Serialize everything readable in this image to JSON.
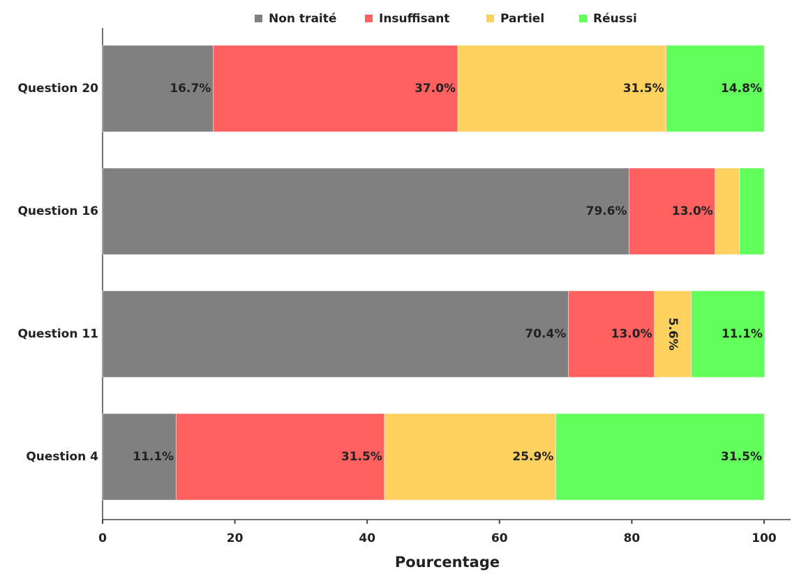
{
  "chart_data": {
    "type": "stacked-barh",
    "xlabel": "Pourcentage",
    "categories": [
      "Question 20",
      "Question 16",
      "Question 11",
      "Question 4"
    ],
    "series": [
      {
        "name": "Non traité",
        "color": "#808080",
        "label_color": "#ffffff",
        "values": [
          16.7,
          79.6,
          70.4,
          11.1
        ],
        "value_labels": [
          "16.7%",
          "79.6%",
          "70.4%",
          "11.1%"
        ]
      },
      {
        "name": "Insuffisant",
        "color": "#ff6161",
        "label_color": "#ffffff",
        "values": [
          37.0,
          13.0,
          13.0,
          31.5
        ],
        "value_labels": [
          "37.0%",
          "13.0%",
          "13.0%",
          "31.5%"
        ]
      },
      {
        "name": "Partiel",
        "color": "#ffd260",
        "label_color": "#777777",
        "values": [
          31.5,
          3.7,
          5.6,
          25.9
        ],
        "value_labels": [
          "31.5%",
          null,
          "5.6%",
          "25.9%"
        ]
      },
      {
        "name": "Réussi",
        "color": "#62ff5c",
        "label_color": "#777777",
        "values": [
          14.8,
          3.7,
          11.1,
          31.5
        ],
        "value_labels": [
          "14.8%",
          null,
          "11.1%",
          "31.5%"
        ]
      }
    ],
    "xlim": [
      0,
      100
    ],
    "xticks": [
      0,
      20,
      40,
      60,
      80,
      100
    ],
    "legend": "top"
  }
}
